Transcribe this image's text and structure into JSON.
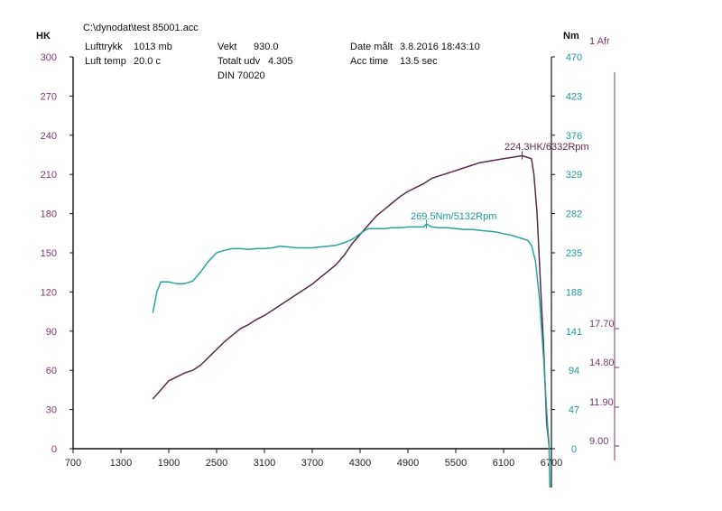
{
  "header": {
    "file": "C:\\dynodat\\test 85001.acc",
    "pressure_label": "Lufttrykk",
    "pressure_value": "1013 mb",
    "temp_label": "Luft temp",
    "temp_value": "20.0 c",
    "weight_label": "Vekt",
    "weight_value": "930.0",
    "ratio_label": "Totalt udv",
    "ratio_value": "4.305",
    "standard": "DIN 70020",
    "date_label": "Date målt",
    "date_value": "3.8.2016 18:43:10",
    "acc_label": "Acc time",
    "acc_value": "13.5 sec"
  },
  "colors": {
    "hk": "#5a2a4a",
    "nm": "#2aa39e",
    "afr": "#7a3a68",
    "grid": "#111111"
  },
  "chart_data": {
    "type": "line",
    "xlim": [
      700,
      6700
    ],
    "x_ticks": [
      "700",
      "1300",
      "1900",
      "2500",
      "3100",
      "3700",
      "4300",
      "4900",
      "5500",
      "6100",
      "6700"
    ],
    "left_axis": {
      "title": "HK",
      "ylim": [
        0,
        300
      ],
      "ticks": [
        "0",
        "30",
        "60",
        "90",
        "120",
        "150",
        "180",
        "210",
        "240",
        "270",
        "300"
      ]
    },
    "right_axis": {
      "title": "Nm",
      "ylim": [
        0,
        470
      ],
      "ticks": [
        "0",
        "47",
        "94",
        "141",
        "188",
        "235",
        "282",
        "329",
        "376",
        "423",
        "470"
      ]
    },
    "afr_axis": {
      "title": "1 Afr",
      "ticks": [
        "9.00",
        "11.90",
        "14.80",
        "17.70"
      ]
    },
    "series": [
      {
        "axis": "left",
        "x": [
          1700,
          1800,
          1900,
          2000,
          2100,
          2200,
          2300,
          2400,
          2500,
          2600,
          2700,
          2800,
          2900,
          3000,
          3100,
          3200,
          3300,
          3400,
          3500,
          3600,
          3700,
          3800,
          3900,
          4000,
          4100,
          4200,
          4300,
          4400,
          4500,
          4600,
          4700,
          4800,
          4900,
          5000,
          5100,
          5200,
          5300,
          5400,
          5500,
          5600,
          5700,
          5800,
          5900,
          6000,
          6100,
          6200,
          6300,
          6332,
          6400,
          6450,
          6480,
          6520,
          6560,
          6600,
          6640,
          6670
        ],
        "y": [
          38,
          45,
          52,
          55,
          58,
          60,
          64,
          70,
          76,
          82,
          87,
          92,
          95,
          99,
          102,
          106,
          110,
          114,
          118,
          122,
          126,
          131,
          136,
          141,
          148,
          157,
          164,
          171,
          178,
          183,
          188,
          193,
          197,
          200,
          203,
          207,
          209,
          211,
          213,
          215,
          217,
          219,
          220,
          221,
          222,
          223,
          224,
          224.3,
          223,
          222,
          210,
          180,
          130,
          80,
          20,
          2
        ]
      },
      {
        "axis": "right",
        "x": [
          1700,
          1750,
          1800,
          1900,
          2000,
          2100,
          2200,
          2300,
          2400,
          2500,
          2600,
          2700,
          2800,
          2900,
          3000,
          3100,
          3200,
          3300,
          3400,
          3500,
          3600,
          3700,
          3800,
          3900,
          4000,
          4100,
          4200,
          4300,
          4400,
          4500,
          4600,
          4700,
          4800,
          4900,
          5000,
          5100,
          5132,
          5200,
          5300,
          5400,
          5500,
          5600,
          5700,
          5800,
          5900,
          6000,
          6100,
          6200,
          6300,
          6400,
          6450,
          6500,
          6550,
          6600,
          6650,
          6670
        ],
        "y": [
          163,
          188,
          200,
          200,
          198,
          198,
          201,
          212,
          225,
          235,
          238,
          240,
          240,
          239,
          240,
          240,
          241,
          243,
          242,
          241,
          241,
          241,
          242,
          243,
          244,
          247,
          251,
          258,
          264,
          264,
          264,
          265,
          265,
          266,
          266,
          266,
          269.5,
          266,
          265,
          265,
          264,
          263,
          263,
          262,
          261,
          260,
          258,
          256,
          253,
          250,
          244,
          225,
          180,
          110,
          30,
          5
        ]
      }
    ],
    "annotations": [
      "224.3HK/6332Rpm",
      "269.5Nm/5132Rpm"
    ]
  }
}
